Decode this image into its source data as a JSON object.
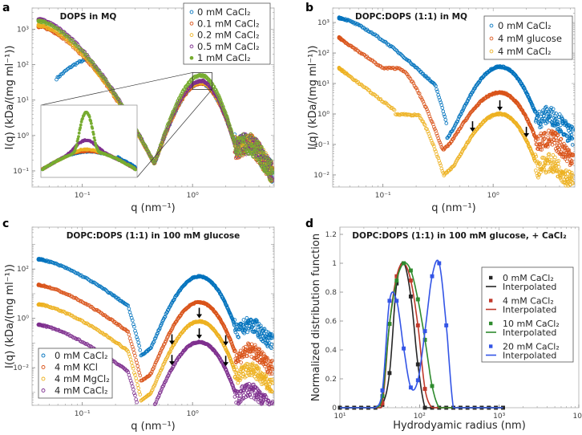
{
  "figure": {
    "panel_labels": [
      "a",
      "b",
      "c",
      "d"
    ]
  },
  "chart_data": [
    {
      "id": "a",
      "type": "scatter",
      "title": "DOPS in MQ",
      "xlabel": "q (nm⁻¹)",
      "ylabel": "I(q) (kDa/(mg ml⁻¹))",
      "xscale": "log",
      "yscale": "log",
      "xlim": [
        0.035,
        5.5
      ],
      "ylim": [
        0.035,
        4000
      ],
      "xticks": [
        {
          "v": 0.1,
          "label": "10⁻¹"
        },
        {
          "v": 1,
          "label": "10⁰"
        }
      ],
      "yticks": [
        {
          "v": 0.1,
          "label": "10⁻¹"
        },
        {
          "v": 1,
          "label": "10⁰"
        },
        {
          "v": 10,
          "label": "10¹"
        },
        {
          "v": 100,
          "label": "10²"
        },
        {
          "v": 1000,
          "label": "10³"
        }
      ],
      "legend": "top-right",
      "series": [
        {
          "name": "0 mM CaCl₂",
          "color": "#0072BD",
          "shape": "profile",
          "params": {
            "kind": "dops0"
          }
        },
        {
          "name": "0.1 mM CaCl₂",
          "color": "#D95319",
          "shape": "profile",
          "params": {
            "kind": "dops",
            "low": 1200,
            "peak": 30
          }
        },
        {
          "name": "0.2 mM CaCl₂",
          "color": "#EDB120",
          "shape": "profile",
          "params": {
            "kind": "dops",
            "low": 1300,
            "peak": 32
          }
        },
        {
          "name": "0.5 mM CaCl₂",
          "color": "#7E2F8E",
          "shape": "profile",
          "params": {
            "kind": "dops",
            "low": 1900,
            "peak": 35
          }
        },
        {
          "name": "1 mM CaCl₂",
          "color": "#77AC30",
          "shape": "profile",
          "params": {
            "kind": "dops",
            "low": 1700,
            "peak": 50
          }
        }
      ],
      "inset": {
        "description": "Zoom of peak region near q ≈ 1.2 nm⁻¹",
        "series_peaks": [
          {
            "name": "0 mM CaCl₂",
            "color": "#0072BD",
            "peak": 0.15
          },
          {
            "name": "0.1 mM CaCl₂",
            "color": "#D95319",
            "peak": 0.19
          },
          {
            "name": "0.2 mM CaCl₂",
            "color": "#EDB120",
            "peak": 0.22
          },
          {
            "name": "0.5 mM CaCl₂",
            "color": "#7E2F8E",
            "peak": 0.4
          },
          {
            "name": "1 mM CaCl₂",
            "color": "#77AC30",
            "peak": 2.5
          }
        ],
        "yticks_shared": true
      }
    },
    {
      "id": "b",
      "type": "scatter",
      "title": "DOPC:DOPS (1:1) in MQ",
      "xlabel": "q (nm⁻¹)",
      "ylabel": "I(q) (kDa/(mg ml⁻¹))",
      "xscale": "log",
      "yscale": "log",
      "xlim": [
        0.035,
        5.5
      ],
      "ylim": [
        0.004,
        3000
      ],
      "xticks": [
        {
          "v": 0.1,
          "label": "10⁻¹"
        },
        {
          "v": 1,
          "label": "10⁰"
        }
      ],
      "yticks": [
        {
          "v": 0.01,
          "label": "10⁻²"
        },
        {
          "v": 0.1,
          "label": "10⁻¹"
        },
        {
          "v": 1,
          "label": "10⁰"
        },
        {
          "v": 10,
          "label": "10¹"
        },
        {
          "v": 100,
          "label": "10²"
        },
        {
          "v": 1000,
          "label": "10³"
        }
      ],
      "legend": "top-right",
      "series": [
        {
          "name": "0 mM CaCl₂",
          "color": "#0072BD",
          "params": {
            "kind": "b0",
            "scale": 1
          }
        },
        {
          "name": "4 mM glucose",
          "color": "#D95319",
          "params": {
            "kind": "bglu",
            "scale": 1
          }
        },
        {
          "name": "4 mM CaCl₂",
          "color": "#EDB120",
          "params": {
            "kind": "bca",
            "scale": 1
          }
        }
      ],
      "arrows_q": [
        0.65,
        1.15,
        2.0
      ]
    },
    {
      "id": "c",
      "type": "scatter",
      "title": "DOPC:DOPS (1:1) in 100 mM glucose",
      "xlabel": "q (nm⁻¹)",
      "ylabel": "I(q) (kDa/(mg ml⁻¹))",
      "xscale": "log",
      "yscale": "log",
      "xlim": [
        0.035,
        5.5
      ],
      "ylim": [
        0.0003,
        5000
      ],
      "xticks": [
        {
          "v": 0.1,
          "label": "10⁻¹"
        },
        {
          "v": 1,
          "label": "10⁰"
        }
      ],
      "yticks": [
        {
          "v": 0.01,
          "label": "10⁻²"
        },
        {
          "v": 1,
          "label": "10⁰"
        },
        {
          "v": 100,
          "label": "10²"
        }
      ],
      "legend": "bottom-left",
      "series": [
        {
          "name": "0 mM CaCl₂",
          "color": "#0072BD",
          "params": {
            "scale": 1
          }
        },
        {
          "name": "4 mM KCl",
          "color": "#D95319",
          "params": {
            "scale": 0.09
          }
        },
        {
          "name": "4 mM MgCl₂",
          "color": "#EDB120",
          "params": {
            "scale": 0.015
          }
        },
        {
          "name": "4 mM CaCl₂",
          "color": "#7E2F8E",
          "params": {
            "scale": 0.0022
          }
        }
      ],
      "arrows_q": [
        0.65,
        1.15,
        2.0
      ]
    },
    {
      "id": "d",
      "type": "line",
      "title": "DOPC:DOPS (1:1) in 100 mM glucose, + CaCl₂",
      "xlabel": "Hydrodyamic radius (nm)",
      "ylabel": "Normalized distribution function",
      "xscale": "log",
      "xlim": [
        10,
        10000
      ],
      "ylim": [
        0,
        1.25
      ],
      "xticks": [
        {
          "v": 10,
          "label": "10¹"
        },
        {
          "v": 100,
          "label": "10²"
        },
        {
          "v": 1000,
          "label": "10³"
        },
        {
          "v": 10000,
          "label": "10⁴"
        }
      ],
      "yticks": [
        {
          "v": 0,
          "label": "0"
        },
        {
          "v": 0.2,
          "label": "0.2"
        },
        {
          "v": 0.4,
          "label": "0.4"
        },
        {
          "v": 0.6,
          "label": "0.6"
        },
        {
          "v": 0.8,
          "label": "0.8"
        },
        {
          "v": 1,
          "label": "1"
        },
        {
          "v": 1.2,
          "label": "1.2"
        }
      ],
      "legend": "right",
      "grid_x": [
        10,
        12.3,
        15.1,
        18.5,
        22.7,
        27.9,
        34.2,
        42.0,
        51.6,
        63.3,
        77.7,
        95.4,
        117.1,
        143.8,
        176.5,
        216.7,
        266.0,
        326.6,
        400.9,
        492.2,
        604.2,
        741.7,
        910.6,
        1117.9
      ],
      "series": [
        {
          "name": "0 mM CaCl₂",
          "line_name": "Interpolated",
          "color": "#262626",
          "values": [
            0,
            0,
            0,
            0,
            0,
            0,
            0.02,
            0.24,
            0.86,
            1.0,
            0.77,
            0.3,
            0,
            0,
            0,
            0,
            0,
            0,
            0,
            0,
            0,
            0,
            0,
            0
          ]
        },
        {
          "name": "4 mM CaCl₂",
          "line_name": "Interpolated",
          "color": "#C0392B",
          "values": [
            0,
            0,
            0,
            0,
            0,
            0,
            0.03,
            0.58,
            0.91,
            1.0,
            0.88,
            0.57,
            0.13,
            0,
            0,
            0,
            0,
            0,
            0,
            0,
            0,
            0,
            0,
            0
          ]
        },
        {
          "name": "10 mM CaCl₂",
          "line_name": "Interpolated",
          "color": "#2E8B2E",
          "values": [
            0,
            0,
            0,
            0,
            0,
            0,
            0.08,
            0.58,
            0.88,
            1.0,
            0.95,
            0.75,
            0.47,
            0.15,
            0,
            0,
            0,
            0,
            0,
            0,
            0,
            0,
            0,
            0
          ]
        },
        {
          "name": "20 mM CaCl₂",
          "line_name": "Interpolated",
          "color": "#3355E6",
          "values": [
            0,
            0,
            0,
            0,
            0,
            0,
            0.12,
            0.74,
            0.74,
            0.41,
            0.14,
            0.19,
            0.53,
            0.91,
            1.0,
            0.57,
            0,
            0,
            0,
            0,
            0,
            0,
            0,
            0
          ]
        }
      ]
    }
  ]
}
